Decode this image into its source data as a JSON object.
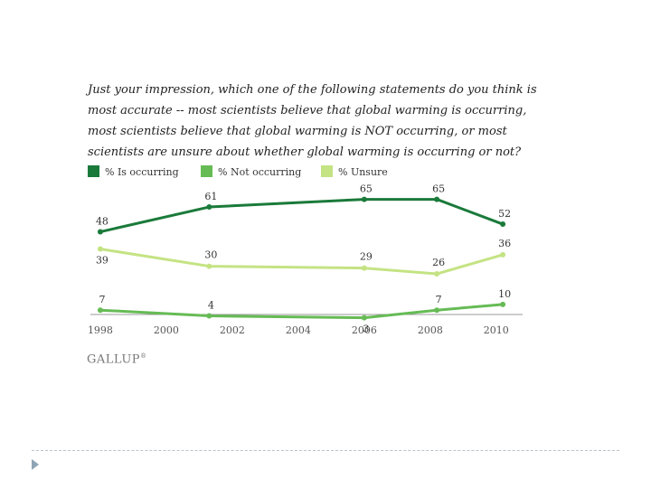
{
  "question": "Just your impression, which one of the following statements do you think is most accurate -- most scientists believe that global warming is occurring, most scientists believe that global warming is NOT occurring, or most scientists are unsure about whether global warming is occurring or not?",
  "brand": {
    "name": "GALLUP",
    "mark": "®"
  },
  "colors": {
    "occurring": "#1a7a3a",
    "not_occurring": "#66bb55",
    "unsure": "#c4e383",
    "axis": "#999999",
    "divider": "#b8c4cc",
    "bullet": "#8fa4b4"
  },
  "slide": {
    "bullet_icon": "triangle-bullet-icon"
  },
  "chart_data": {
    "type": "line",
    "title": "",
    "xlabel": "",
    "ylabel": "",
    "xlim": [
      1997.7,
      2010.8
    ],
    "ylim": [
      0,
      70
    ],
    "grid": false,
    "legend_position": "top-left",
    "x_ticks": [
      1998,
      2000,
      2002,
      2004,
      2006,
      2008,
      2010
    ],
    "x_tick_labels": [
      "1998",
      "2000",
      "2002",
      "2004",
      "2006",
      "2008",
      "2010"
    ],
    "x": [
      1998,
      2001.3,
      2006,
      2008.2,
      2010.2
    ],
    "series": [
      {
        "name": "% Is occurring",
        "key": "occurring",
        "values": [
          48,
          61,
          65,
          65,
          52
        ],
        "labels": [
          "48",
          "61",
          "65",
          "65",
          "52"
        ]
      },
      {
        "name": "% Not occurring",
        "key": "not_occurring",
        "values": [
          7,
          4,
          3,
          7,
          10
        ],
        "labels": [
          "7",
          "4",
          "3",
          "7",
          "10"
        ]
      },
      {
        "name": "% Unsure",
        "key": "unsure",
        "values": [
          39,
          30,
          29,
          26,
          36
        ],
        "labels": [
          "39",
          "30",
          "29",
          "26",
          "36"
        ]
      }
    ]
  }
}
